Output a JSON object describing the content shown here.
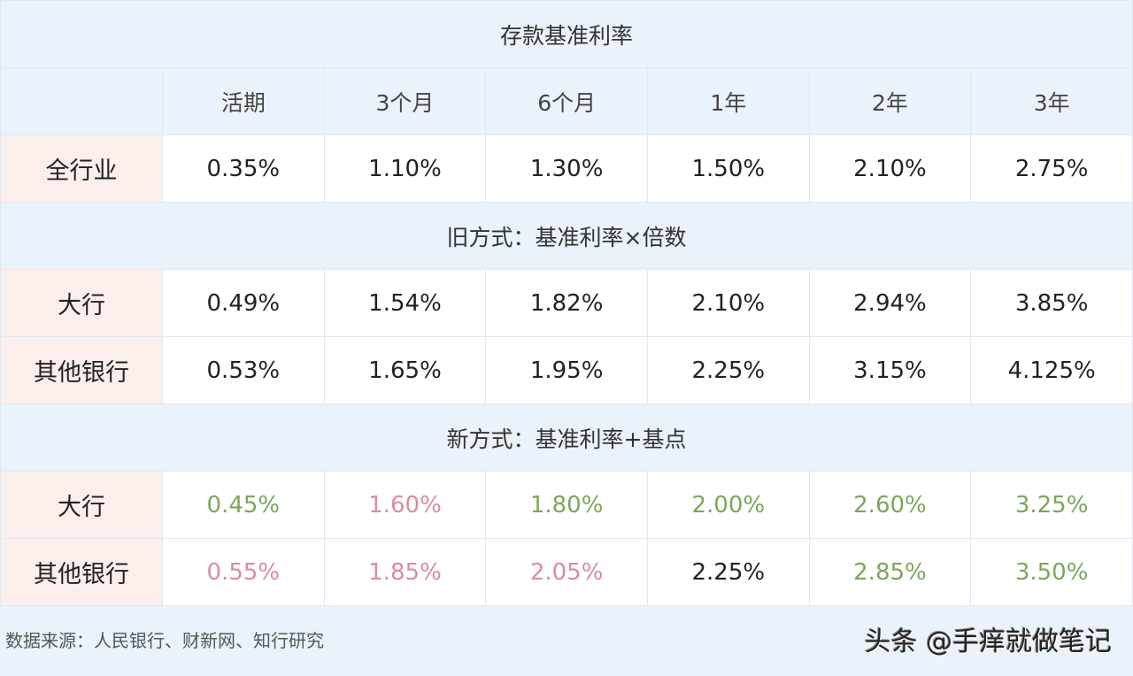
{
  "title": "存款基准利率",
  "columns": [
    "活期",
    "3个月",
    "6个月",
    "1年",
    "2年",
    "3年"
  ],
  "colors": {
    "green": "#7ba75a",
    "pink": "#d98d9f",
    "label_bg": "#fcefeb",
    "band_bg": "#eaf2fb"
  },
  "base": {
    "label": "全行业",
    "values": [
      "0.35%",
      "1.10%",
      "1.30%",
      "1.50%",
      "2.10%",
      "2.75%"
    ]
  },
  "old": {
    "title": "旧方式：基准利率×倍数",
    "rows": [
      {
        "label": "大行",
        "values": [
          "0.49%",
          "1.54%",
          "1.82%",
          "2.10%",
          "2.94%",
          "3.85%"
        ]
      },
      {
        "label": "其他银行",
        "values": [
          "0.53%",
          "1.65%",
          "1.95%",
          "2.25%",
          "3.15%",
          "4.125%"
        ]
      }
    ]
  },
  "new": {
    "title": "新方式：基准利率+基点",
    "rows": [
      {
        "label": "大行",
        "values": [
          "0.45%",
          "1.60%",
          "1.80%",
          "2.00%",
          "2.60%",
          "3.25%"
        ],
        "tones": [
          "green",
          "pink",
          "green",
          "green",
          "green",
          "green"
        ]
      },
      {
        "label": "其他银行",
        "values": [
          "0.55%",
          "1.85%",
          "2.05%",
          "2.25%",
          "2.85%",
          "3.50%"
        ],
        "tones": [
          "pink",
          "pink",
          "pink",
          "",
          "green",
          "green"
        ]
      }
    ]
  },
  "footer": "数据来源：人民银行、财新网、知行研究",
  "watermark": "头条 @手痒就做笔记"
}
